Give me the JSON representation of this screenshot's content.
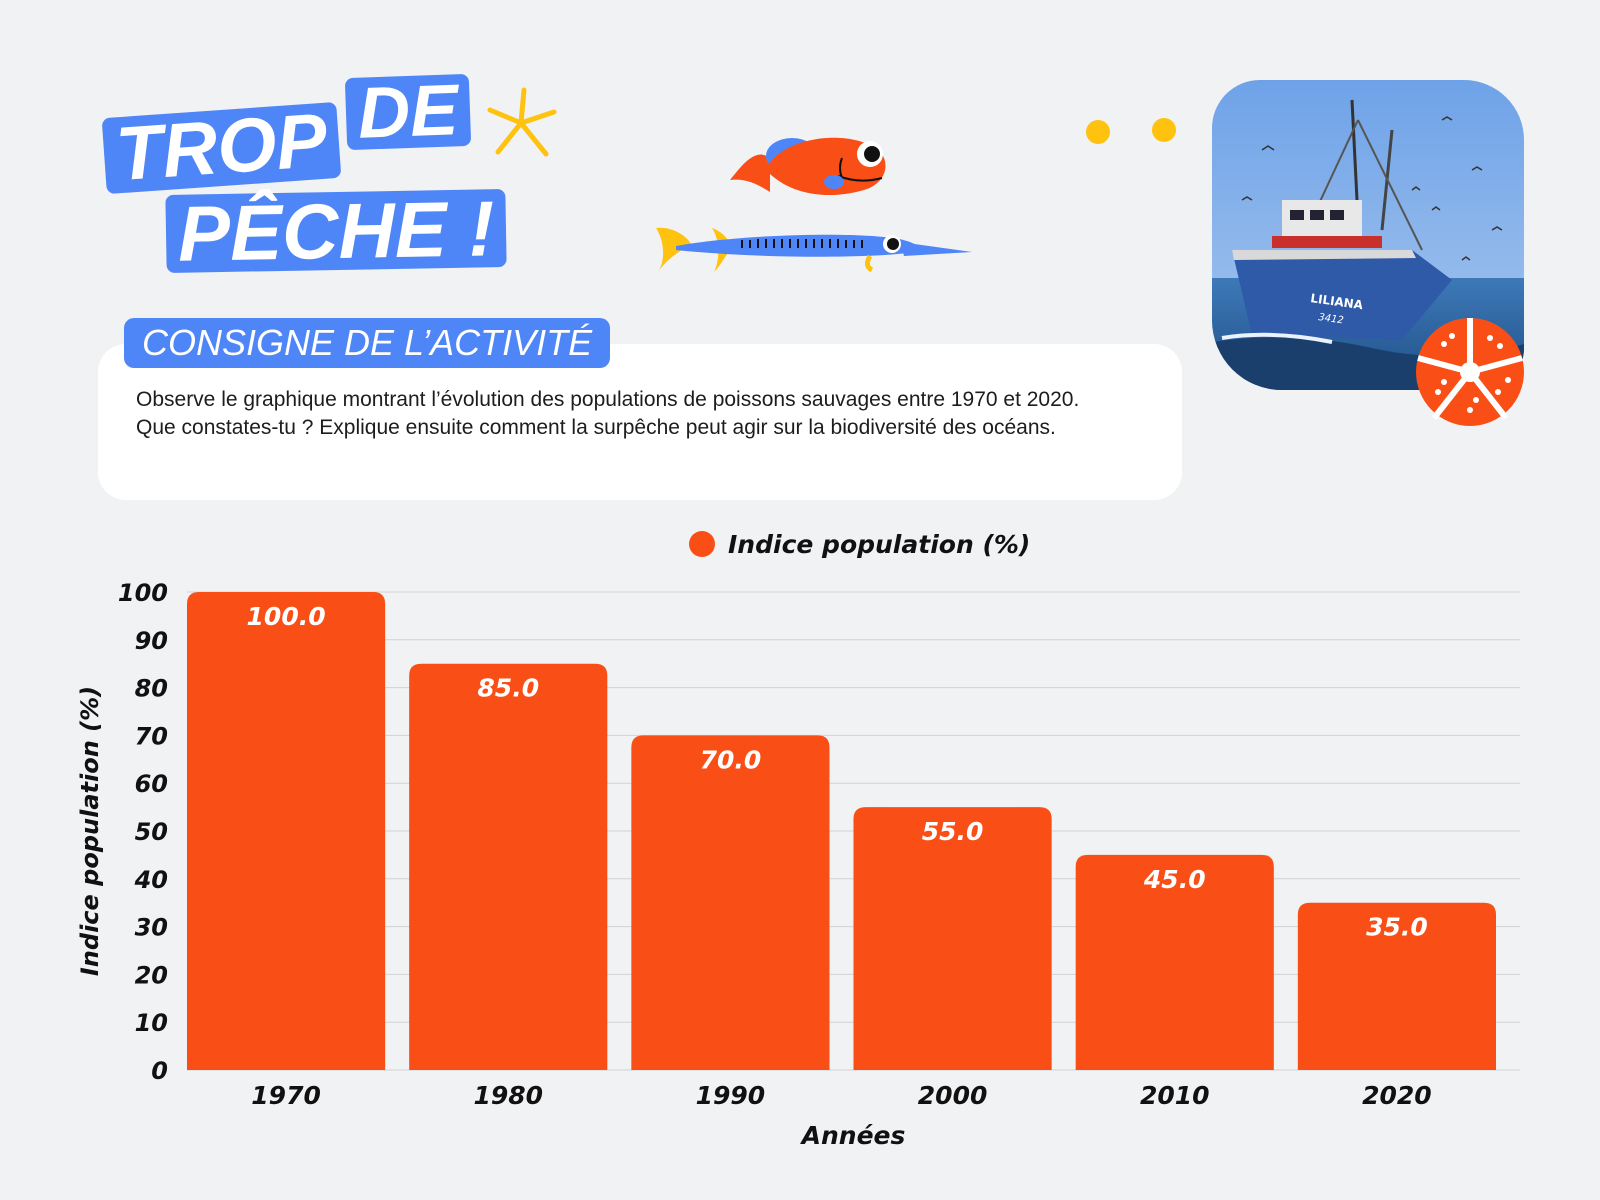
{
  "header": {
    "title_line1_word1": "TROP",
    "title_line1_word2": "DE",
    "title_line2": "PÊCHE !"
  },
  "instructions": {
    "heading": "CONSIGNE DE L’ACTIVITÉ",
    "text": "Observe le graphique montrant l’évolution des populations de poissons sauvages entre 1970 et 2020. Que constates-tu ? Explique ensuite comment la surpêche peut agir sur la biodiversité des océans."
  },
  "photo": {
    "boat_name": "LILIANA",
    "boat_number": "3412"
  },
  "colors": {
    "bar": "#f94f16",
    "accent_blue": "#4f86f7",
    "accent_yellow": "#ffc20e",
    "background": "#f1f2f4"
  },
  "chart_data": {
    "type": "bar",
    "categories": [
      "1970",
      "1980",
      "1990",
      "2000",
      "2010",
      "2020"
    ],
    "series": [
      {
        "name": "Indice population (%)",
        "values": [
          100.0,
          85.0,
          70.0,
          55.0,
          45.0,
          35.0
        ]
      }
    ],
    "data_labels": [
      "100.0",
      "85.0",
      "70.0",
      "55.0",
      "45.0",
      "35.0"
    ],
    "xlabel": "Années",
    "ylabel": "Indice population (%)",
    "ylim": [
      0,
      100
    ],
    "yticks": [
      "0",
      "10",
      "20",
      "30",
      "40",
      "50",
      "60",
      "70",
      "80",
      "90",
      "100"
    ],
    "grid": true,
    "legend_position": "top-center"
  }
}
